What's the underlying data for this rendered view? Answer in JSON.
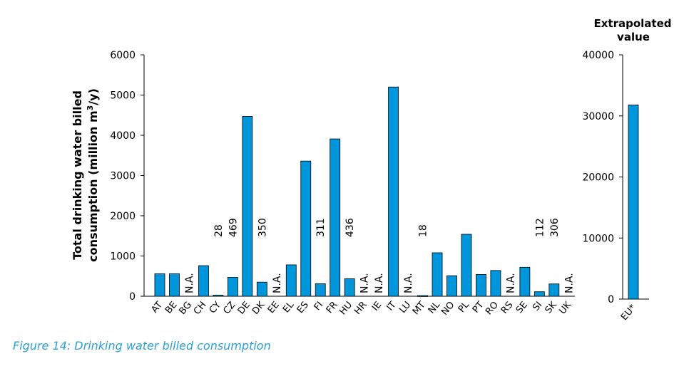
{
  "caption": "Figure 14: Drinking water billed consumption",
  "chart_data": [
    {
      "type": "bar",
      "ylabel_line1": "Total drinking water billed",
      "ylabel_line2_prefix": "consumption (million m",
      "ylabel_line2_sup": "3",
      "ylabel_line2_suffix": "/y)",
      "ylim": [
        0,
        6000
      ],
      "yticks": [
        "0",
        "1000",
        "2000",
        "3000",
        "4000",
        "5000",
        "6000"
      ],
      "bar_color": "#0096dc",
      "categories": [
        "AT",
        "BE",
        "BG",
        "CH",
        "CY",
        "CZ",
        "DE",
        "DK",
        "EE",
        "EL",
        "ES",
        "FI",
        "FR",
        "HU",
        "HR",
        "IE",
        "IT",
        "LU",
        "MT",
        "NL",
        "NO",
        "PL",
        "PT",
        "RO",
        "RS",
        "SE",
        "SI",
        "SK",
        "UK"
      ],
      "values": [
        560,
        560,
        null,
        760,
        28,
        469,
        4470,
        350,
        null,
        780,
        3360,
        311,
        3910,
        436,
        null,
        null,
        5200,
        null,
        18,
        1080,
        510,
        1540,
        540,
        640,
        null,
        720,
        112,
        306,
        null
      ],
      "annotations": [
        "",
        "",
        "N.A.",
        "",
        "28",
        "469",
        "",
        "350",
        "N.A.",
        "",
        "",
        "311",
        "",
        "436",
        "N.A.",
        "N.A.",
        "",
        "N.A.",
        "18",
        "",
        "",
        "",
        "",
        "",
        "N.A.",
        "",
        "112",
        "306",
        "N.A."
      ]
    },
    {
      "type": "bar",
      "title_line1": "Extrapolated",
      "title_line2": "value",
      "ylim": [
        0,
        40000
      ],
      "yticks": [
        "0",
        "10000",
        "20000",
        "30000",
        "40000"
      ],
      "bar_color": "#0096dc",
      "categories": [
        "EU*"
      ],
      "values": [
        31800
      ]
    }
  ]
}
